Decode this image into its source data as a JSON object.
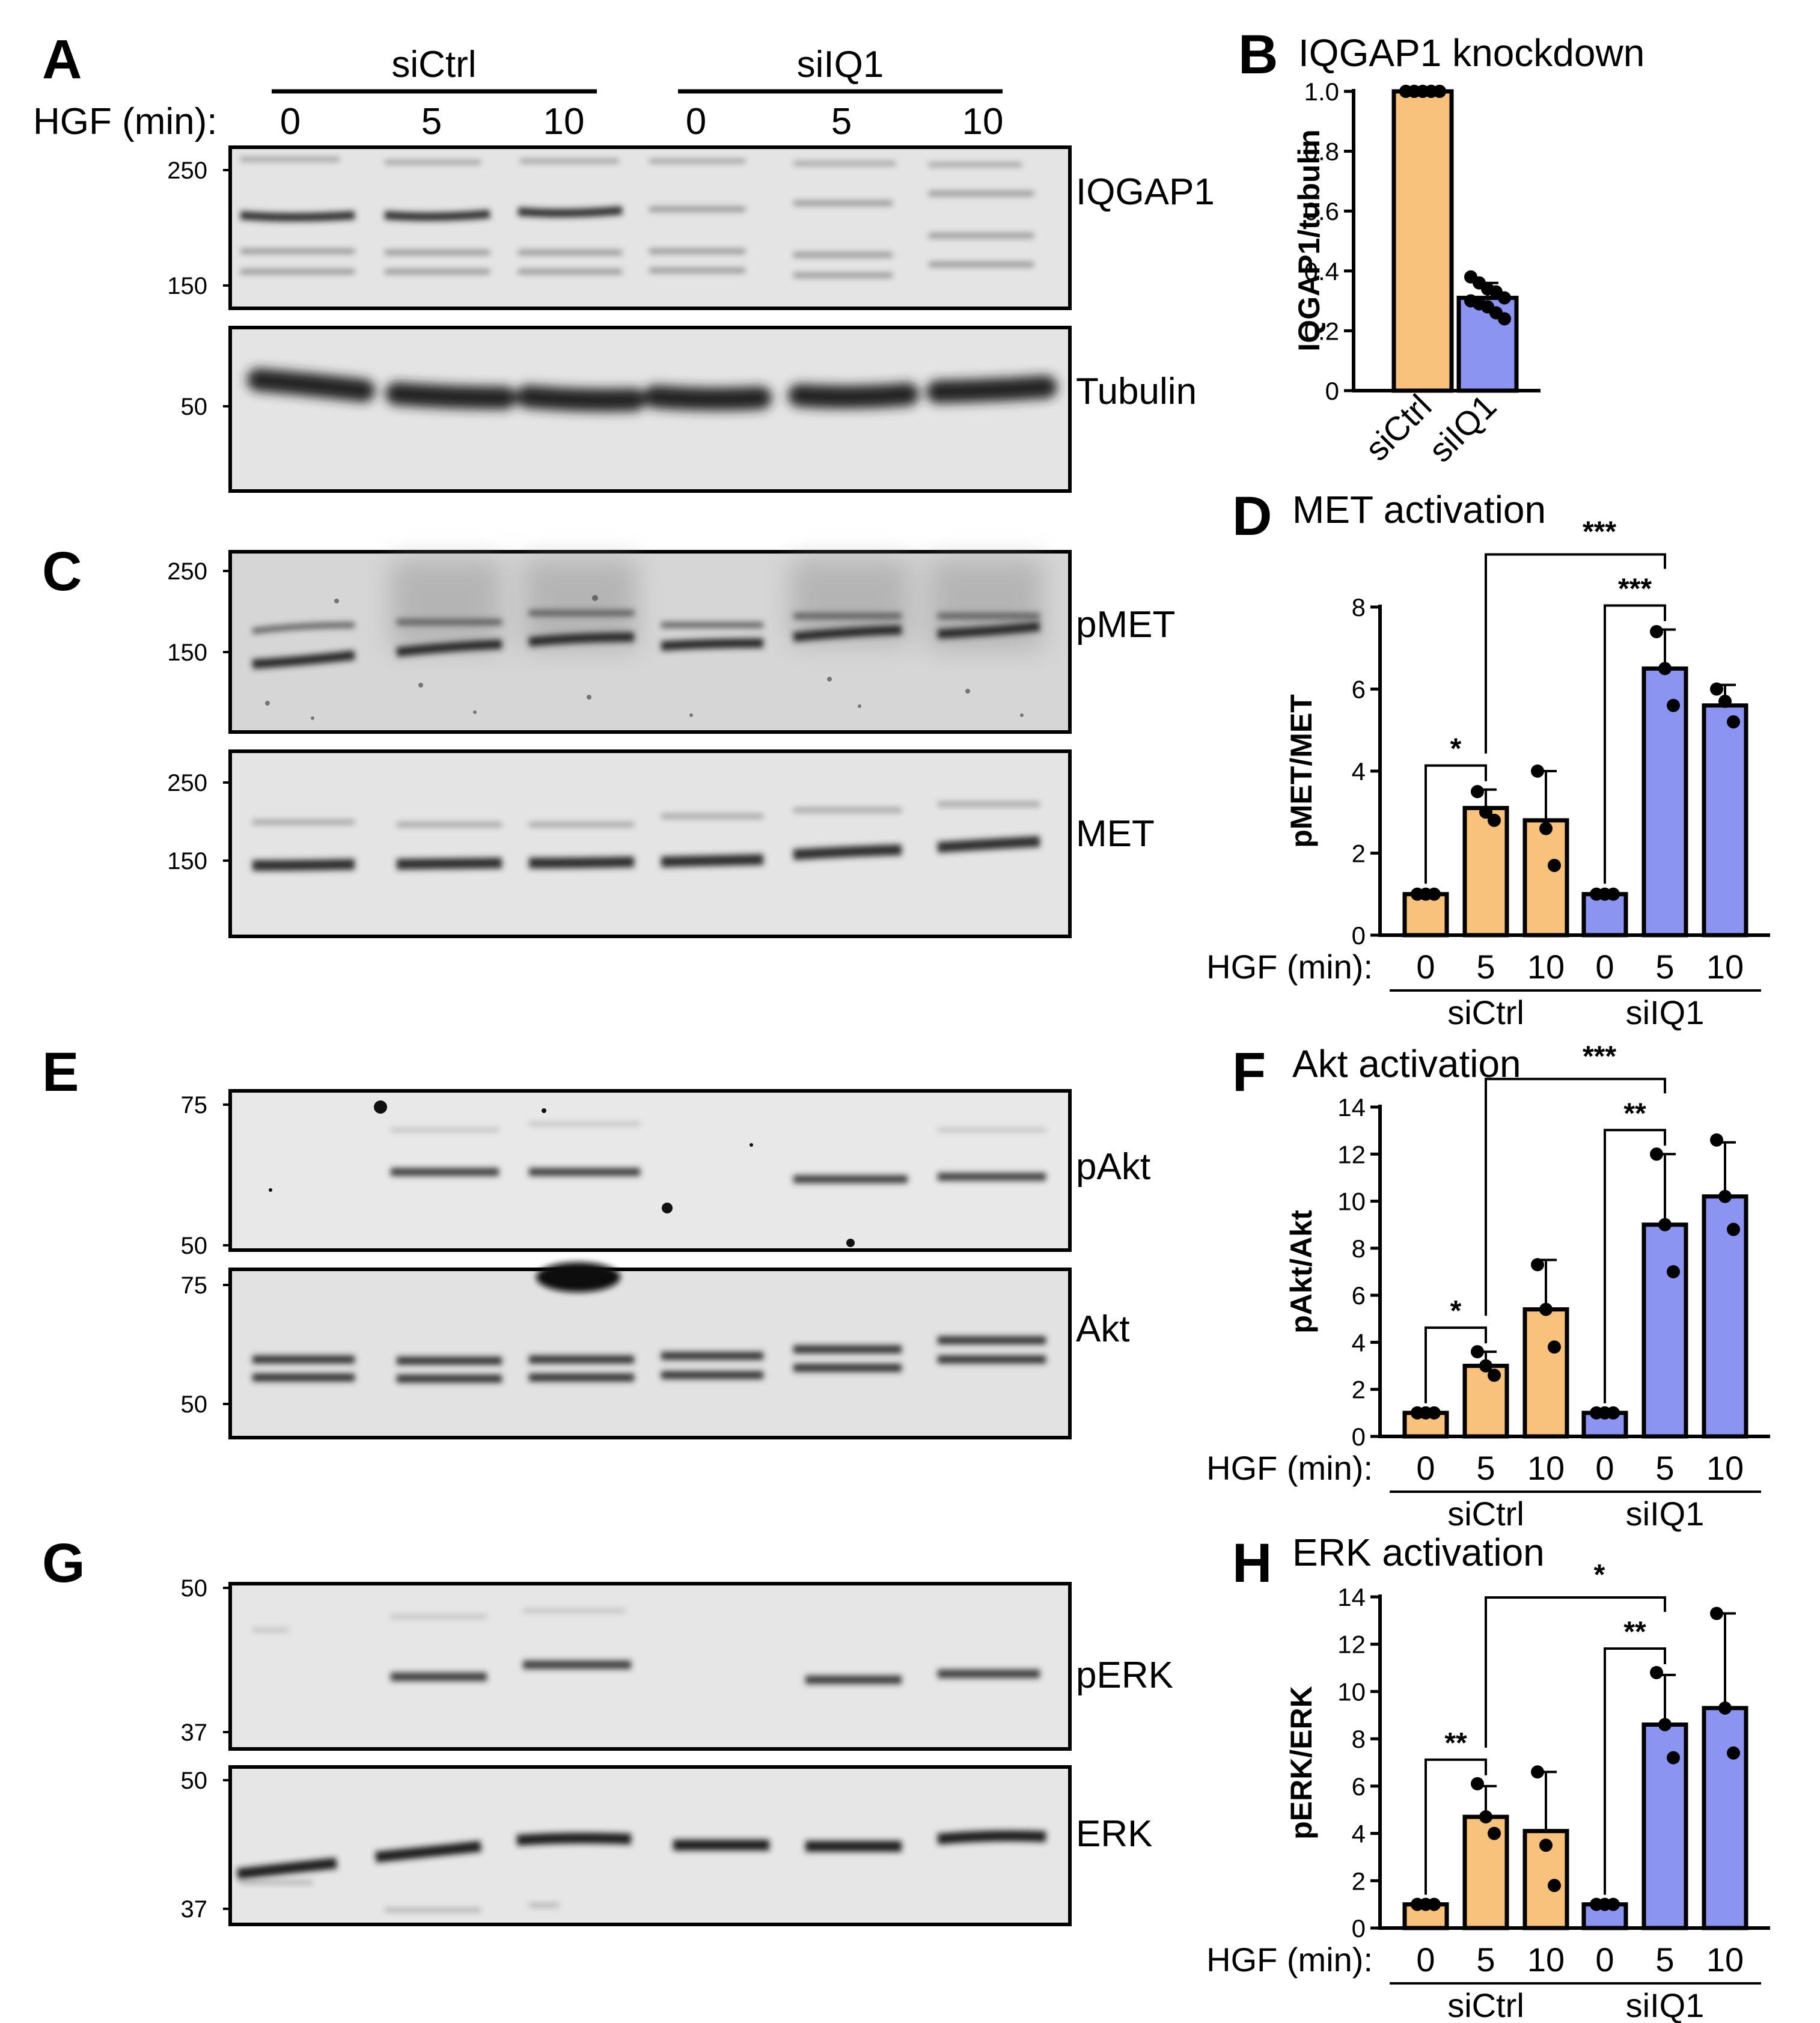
{
  "panels": {
    "A": {
      "letter": "A",
      "groups": [
        "siCtrl",
        "siIQ1"
      ],
      "hgf_label": "HGF (min):",
      "times": [
        "0",
        "5",
        "10",
        "0",
        "5",
        "10"
      ],
      "blots": [
        {
          "protein": "IQGAP1",
          "mw": [
            "250",
            "150"
          ]
        },
        {
          "protein": "Tubulin",
          "mw": [
            "50"
          ]
        }
      ]
    },
    "C": {
      "letter": "C",
      "blots": [
        {
          "protein": "pMET",
          "mw": [
            "250",
            "150"
          ]
        },
        {
          "protein": "MET",
          "mw": [
            "250",
            "150"
          ]
        }
      ]
    },
    "E": {
      "letter": "E",
      "blots": [
        {
          "protein": "pAkt",
          "mw": [
            "75",
            "50"
          ]
        },
        {
          "protein": "Akt",
          "mw": [
            "75",
            "50"
          ]
        }
      ]
    },
    "G": {
      "letter": "G",
      "blots": [
        {
          "protein": "pERK",
          "mw": [
            "50",
            "37"
          ]
        },
        {
          "protein": "ERK",
          "mw": [
            "50",
            "37"
          ]
        }
      ]
    }
  },
  "colors": {
    "siCtrl": "#F9C27C",
    "siIQ1": "#8B94F0"
  },
  "chart_data": [
    {
      "panel": "B",
      "type": "bar",
      "title": "IQGAP1 knockdown",
      "ylabel": "IQGAP1/tubulin",
      "ylim": [
        0,
        1.0
      ],
      "yticks": [
        "0",
        "0.2",
        "0.4",
        "0.6",
        "0.8",
        "1.0"
      ],
      "categories": [
        "siCtrl",
        "siIQ1"
      ],
      "values": [
        1.0,
        0.31
      ],
      "errors": [
        0,
        0.05
      ],
      "points": [
        [
          1,
          1,
          1,
          1,
          1,
          1,
          1,
          1,
          1,
          1
        ],
        [
          0.38,
          0.36,
          0.34,
          0.33,
          0.31,
          0.3,
          0.29,
          0.28,
          0.26,
          0.24
        ]
      ]
    },
    {
      "panel": "D",
      "type": "bar",
      "title": "MET activation",
      "ylabel": "pMET/MET",
      "ylim": [
        0,
        8
      ],
      "yticks": [
        "0",
        "2",
        "4",
        "6",
        "8"
      ],
      "x_label": "HGF (min):",
      "categories": [
        "0",
        "5",
        "10",
        "0",
        "5",
        "10"
      ],
      "groups": [
        "siCtrl",
        "siIQ1"
      ],
      "values": [
        1.0,
        3.1,
        2.8,
        1.0,
        6.5,
        5.6
      ],
      "errors": [
        0.05,
        0.45,
        1.2,
        0.05,
        0.95,
        0.5
      ],
      "points": [
        [
          1,
          1,
          1
        ],
        [
          3.5,
          3.0,
          2.8
        ],
        [
          4.0,
          2.6,
          1.7
        ],
        [
          1,
          1,
          1
        ],
        [
          7.4,
          6.5,
          5.6
        ],
        [
          6.0,
          5.7,
          5.2
        ]
      ],
      "significance": [
        {
          "from": 0,
          "to": 1,
          "label": "*"
        },
        {
          "from": 3,
          "to": 4,
          "label": "***"
        },
        {
          "from": 1,
          "to": 4,
          "label": "***"
        }
      ]
    },
    {
      "panel": "F",
      "type": "bar",
      "title": "Akt activation",
      "ylabel": "pAkt/Akt",
      "ylim": [
        0,
        14
      ],
      "yticks": [
        "0",
        "2",
        "4",
        "6",
        "8",
        "10",
        "12",
        "14"
      ],
      "x_label": "HGF (min):",
      "categories": [
        "0",
        "5",
        "10",
        "0",
        "5",
        "10"
      ],
      "groups": [
        "siCtrl",
        "siIQ1"
      ],
      "values": [
        1.0,
        3.0,
        5.4,
        1.0,
        9.0,
        10.2
      ],
      "errors": [
        0.05,
        0.6,
        2.1,
        0.05,
        3.0,
        2.3
      ],
      "points": [
        [
          1,
          1,
          1
        ],
        [
          3.6,
          3.0,
          2.6
        ],
        [
          7.3,
          5.4,
          3.8
        ],
        [
          1,
          1,
          1
        ],
        [
          12.0,
          9.0,
          7.0
        ],
        [
          12.6,
          10.2,
          8.8
        ]
      ],
      "significance": [
        {
          "from": 0,
          "to": 1,
          "label": "*"
        },
        {
          "from": 3,
          "to": 4,
          "label": "**"
        },
        {
          "from": 1,
          "to": 4,
          "label": "***"
        }
      ]
    },
    {
      "panel": "H",
      "type": "bar",
      "title": "ERK activation",
      "ylabel": "pERK/ERK",
      "ylim": [
        0,
        14
      ],
      "yticks": [
        "0",
        "2",
        "4",
        "6",
        "8",
        "10",
        "12",
        "14"
      ],
      "x_label": "HGF (min):",
      "categories": [
        "0",
        "5",
        "10",
        "0",
        "5",
        "10"
      ],
      "groups": [
        "siCtrl",
        "siIQ1"
      ],
      "values": [
        1.0,
        4.7,
        4.1,
        1.0,
        8.6,
        9.3
      ],
      "errors": [
        0.05,
        1.3,
        2.5,
        0.05,
        2.1,
        4.0
      ],
      "points": [
        [
          1,
          1,
          1
        ],
        [
          6.1,
          4.7,
          4.0
        ],
        [
          6.6,
          3.5,
          1.8
        ],
        [
          1,
          1,
          1
        ],
        [
          10.8,
          8.6,
          7.2
        ],
        [
          13.3,
          9.3,
          7.4
        ]
      ],
      "significance": [
        {
          "from": 0,
          "to": 1,
          "label": "**"
        },
        {
          "from": 3,
          "to": 4,
          "label": "**"
        },
        {
          "from": 1,
          "to": 4,
          "label": "*"
        }
      ]
    }
  ]
}
